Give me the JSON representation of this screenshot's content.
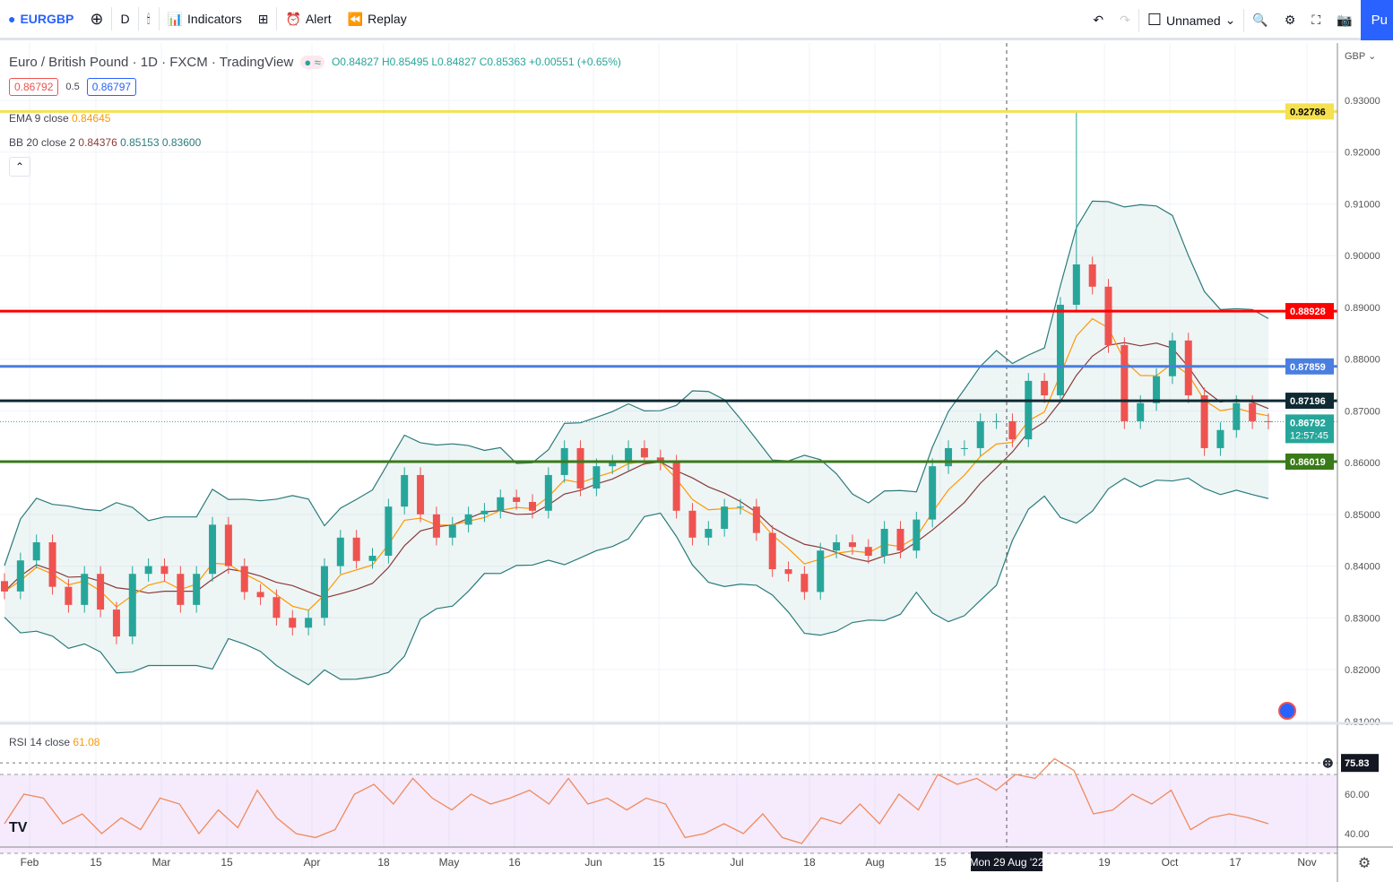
{
  "toolbar": {
    "symbol": "EURGBP",
    "interval": "D",
    "indicators": "Indicators",
    "alert": "Alert",
    "replay": "Replay",
    "layout_name": "Unnamed",
    "publish": "Pu"
  },
  "legend": {
    "title": "Euro / British Pound · 1D · FXCM · TradingView",
    "ohlc": "O0.84827 H0.85495 L0.84827 C0.85363 +0.00551 (+0.65%)",
    "bid": "0.86792",
    "spread": "0.5",
    "ask": "0.86797",
    "ema_label": "EMA 9 close",
    "ema_value": "0.84645",
    "bb_label": "BB 20 close 2",
    "bb_basis": "0.84376",
    "bb_upper": "0.85153",
    "bb_lower": "0.83600",
    "rsi_label": "RSI 14 close",
    "rsi_value": "61.08"
  },
  "price_axis": {
    "currency": "GBP",
    "ticks": [
      "0.93000",
      "0.92000",
      "0.91000",
      "0.90000",
      "0.89000",
      "0.88000",
      "0.87000",
      "0.86000",
      "0.85000",
      "0.84000",
      "0.83000",
      "0.82000",
      "0.81000"
    ],
    "current_time": "12:57:45",
    "rsi_ticks": [
      "60.00",
      "40.00"
    ],
    "rsi_crosshair": "75.83"
  },
  "time_axis": {
    "labels": [
      "Feb",
      "15",
      "Mar",
      "15",
      "Apr",
      "18",
      "May",
      "16",
      "Jun",
      "15",
      "Jul",
      "18",
      "Aug",
      "15",
      "19",
      "Oct",
      "17",
      "Nov"
    ],
    "crosshair": "Mon 29 Aug '22"
  },
  "colors": {
    "up": "#26a69a",
    "down": "#ef5350",
    "ema": "#ff9800",
    "bb": "#2a7b7b",
    "bb_basis": "#8b3a3a",
    "rsi": "#f08a5d"
  },
  "chart_data": {
    "type": "candlestick",
    "price_range": [
      0.81,
      0.93
    ],
    "closes": [
      0.8351,
      0.8411,
      0.8446,
      0.836,
      0.8325,
      0.8385,
      0.8316,
      0.8264,
      0.8385,
      0.84,
      0.8385,
      0.8325,
      0.8385,
      0.848,
      0.84,
      0.835,
      0.834,
      0.83,
      0.8281,
      0.83,
      0.84,
      0.8455,
      0.841,
      0.842,
      0.8515,
      0.8576,
      0.85,
      0.8455,
      0.848,
      0.85,
      0.8507,
      0.8533,
      0.8524,
      0.8507,
      0.8576,
      0.8628,
      0.855,
      0.8593,
      0.86,
      0.8628,
      0.861,
      0.86,
      0.8507,
      0.8455,
      0.8472,
      0.8515,
      0.8515,
      0.8464,
      0.8394,
      0.8385,
      0.835,
      0.843,
      0.8446,
      0.8437,
      0.842,
      0.8472,
      0.843,
      0.849,
      0.8593,
      0.8628,
      0.8628,
      0.868,
      0.868,
      0.8645,
      0.8758,
      0.873,
      0.8905,
      0.8983,
      0.894,
      0.8827,
      0.868,
      0.8715,
      0.8767,
      0.8836,
      0.873,
      0.8628,
      0.8663,
      0.8715,
      0.868,
      0.8679
    ],
    "max_high": 0.92786,
    "levels": [
      {
        "price": "0.92786",
        "color": "#f5e050"
      },
      {
        "price": "0.88928",
        "color": "#ff0000"
      },
      {
        "price": "0.87859",
        "color": "#4a7fe0"
      },
      {
        "price": "0.87196",
        "color": "#0f2a33"
      },
      {
        "price": "0.86019",
        "color": "#3a7a1a"
      }
    ],
    "current_price": "0.86792",
    "rsi": {
      "range": [
        20,
        85
      ],
      "bands": [
        30,
        70
      ],
      "values": [
        45,
        60,
        58,
        45,
        50,
        40,
        48,
        42,
        58,
        55,
        40,
        52,
        43,
        62,
        48,
        40,
        38,
        42,
        60,
        65,
        55,
        68,
        58,
        52,
        60,
        55,
        58,
        62,
        55,
        68,
        55,
        58,
        52,
        58,
        55,
        38,
        40,
        45,
        40,
        50,
        38,
        35,
        48,
        45,
        55,
        45,
        60,
        52,
        70,
        65,
        68,
        62,
        70,
        68,
        78,
        72,
        50,
        52,
        60,
        55,
        62,
        42,
        48,
        50,
        48,
        45
      ]
    }
  }
}
